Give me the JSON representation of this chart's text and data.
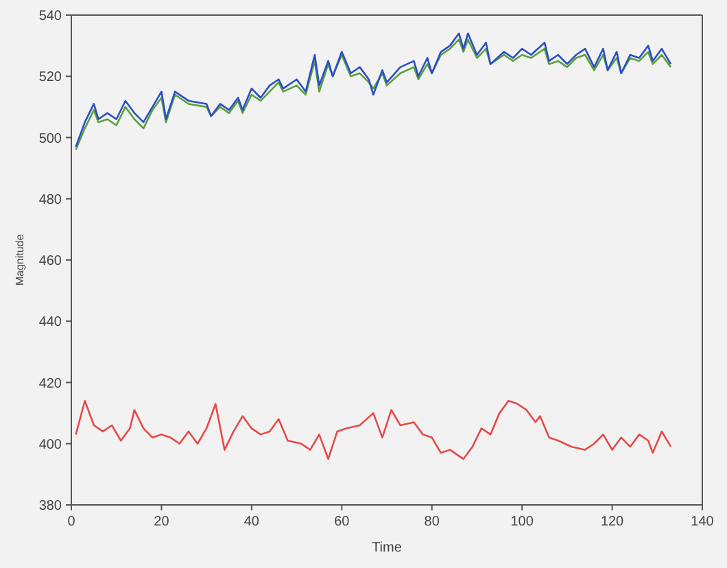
{
  "chart_data": {
    "type": "line",
    "xlabel": "Time",
    "ylabel": "Magnitude",
    "xlim": [
      0,
      140
    ],
    "ylim": [
      380,
      540
    ],
    "xticks": [
      0,
      20,
      40,
      60,
      80,
      100,
      120,
      140
    ],
    "yticks": [
      380,
      400,
      420,
      440,
      460,
      480,
      500,
      520,
      540
    ],
    "marker": "none",
    "line_style": "solid",
    "series": [
      {
        "color": "#5aa03c",
        "x": [
          1,
          3,
          5,
          6,
          8,
          10,
          12,
          14,
          16,
          18,
          20,
          21,
          23,
          26,
          30,
          31,
          33,
          35,
          37,
          38,
          40,
          42,
          44,
          46,
          47,
          50,
          52,
          54,
          55,
          57,
          58,
          60,
          62,
          64,
          66,
          67,
          69,
          70,
          73,
          76,
          77,
          79,
          80,
          82,
          84,
          86,
          87,
          88,
          90,
          92,
          93,
          96,
          98,
          100,
          102,
          105,
          106,
          108,
          110,
          112,
          114,
          116,
          118,
          119,
          121,
          122,
          124,
          126,
          128,
          129,
          131,
          133
        ],
        "values": [
          496,
          503,
          509,
          505,
          506,
          504,
          510,
          506,
          503,
          509,
          513,
          505,
          514,
          511,
          510,
          507,
          510,
          508,
          512,
          508,
          514,
          512,
          515,
          518,
          515,
          517,
          514,
          525,
          515,
          524,
          520,
          527,
          520,
          521,
          518,
          516,
          521,
          517,
          521,
          523,
          519,
          524,
          521,
          527,
          529,
          532,
          528,
          532,
          526,
          529,
          524,
          527,
          525,
          527,
          526,
          529,
          524,
          525,
          523,
          526,
          527,
          522,
          527,
          522,
          526,
          521,
          526,
          525,
          528,
          524,
          527,
          523
        ]
      },
      {
        "color": "#2a4ec8",
        "x": [
          1,
          3,
          5,
          6,
          8,
          10,
          12,
          14,
          16,
          18,
          20,
          21,
          23,
          26,
          30,
          31,
          33,
          35,
          37,
          38,
          40,
          42,
          44,
          46,
          47,
          50,
          52,
          54,
          55,
          57,
          58,
          60,
          62,
          64,
          66,
          67,
          69,
          70,
          73,
          76,
          77,
          79,
          80,
          82,
          84,
          86,
          87,
          88,
          90,
          92,
          93,
          96,
          98,
          100,
          102,
          105,
          106,
          108,
          110,
          112,
          114,
          116,
          118,
          119,
          121,
          122,
          124,
          126,
          128,
          129,
          131,
          133
        ],
        "values": [
          497,
          505,
          511,
          506,
          508,
          506,
          512,
          508,
          505,
          510,
          515,
          506,
          515,
          512,
          511,
          507,
          511,
          509,
          513,
          509,
          516,
          513,
          517,
          519,
          516,
          519,
          515,
          527,
          517,
          525,
          520,
          528,
          521,
          523,
          519,
          514,
          522,
          518,
          523,
          525,
          520,
          526,
          521,
          528,
          530,
          534,
          529,
          534,
          527,
          531,
          524,
          528,
          526,
          529,
          527,
          531,
          525,
          527,
          524,
          527,
          529,
          523,
          529,
          522,
          528,
          521,
          527,
          526,
          530,
          525,
          529,
          524
        ]
      },
      {
        "color": "#e84848",
        "x": [
          1,
          3,
          5,
          7,
          9,
          11,
          13,
          14,
          16,
          18,
          20,
          22,
          24,
          26,
          28,
          30,
          32,
          34,
          36,
          38,
          40,
          42,
          44,
          46,
          48,
          51,
          53,
          55,
          57,
          59,
          61,
          64,
          67,
          69,
          71,
          73,
          76,
          78,
          80,
          82,
          84,
          87,
          89,
          91,
          93,
          95,
          97,
          99,
          101,
          103,
          104,
          106,
          108,
          111,
          114,
          116,
          118,
          120,
          122,
          124,
          126,
          128,
          129,
          131,
          133
        ],
        "values": [
          403,
          414,
          406,
          404,
          406,
          401,
          405,
          411,
          405,
          402,
          403,
          402,
          400,
          404,
          400,
          405,
          413,
          398,
          404,
          409,
          405,
          403,
          404,
          408,
          401,
          400,
          398,
          403,
          395,
          404,
          405,
          406,
          410,
          402,
          411,
          406,
          407,
          403,
          402,
          397,
          398,
          395,
          399,
          405,
          403,
          410,
          414,
          413,
          411,
          407,
          409,
          402,
          401,
          399,
          398,
          400,
          403,
          398,
          402,
          399,
          403,
          401,
          397,
          404,
          399
        ]
      }
    ]
  }
}
